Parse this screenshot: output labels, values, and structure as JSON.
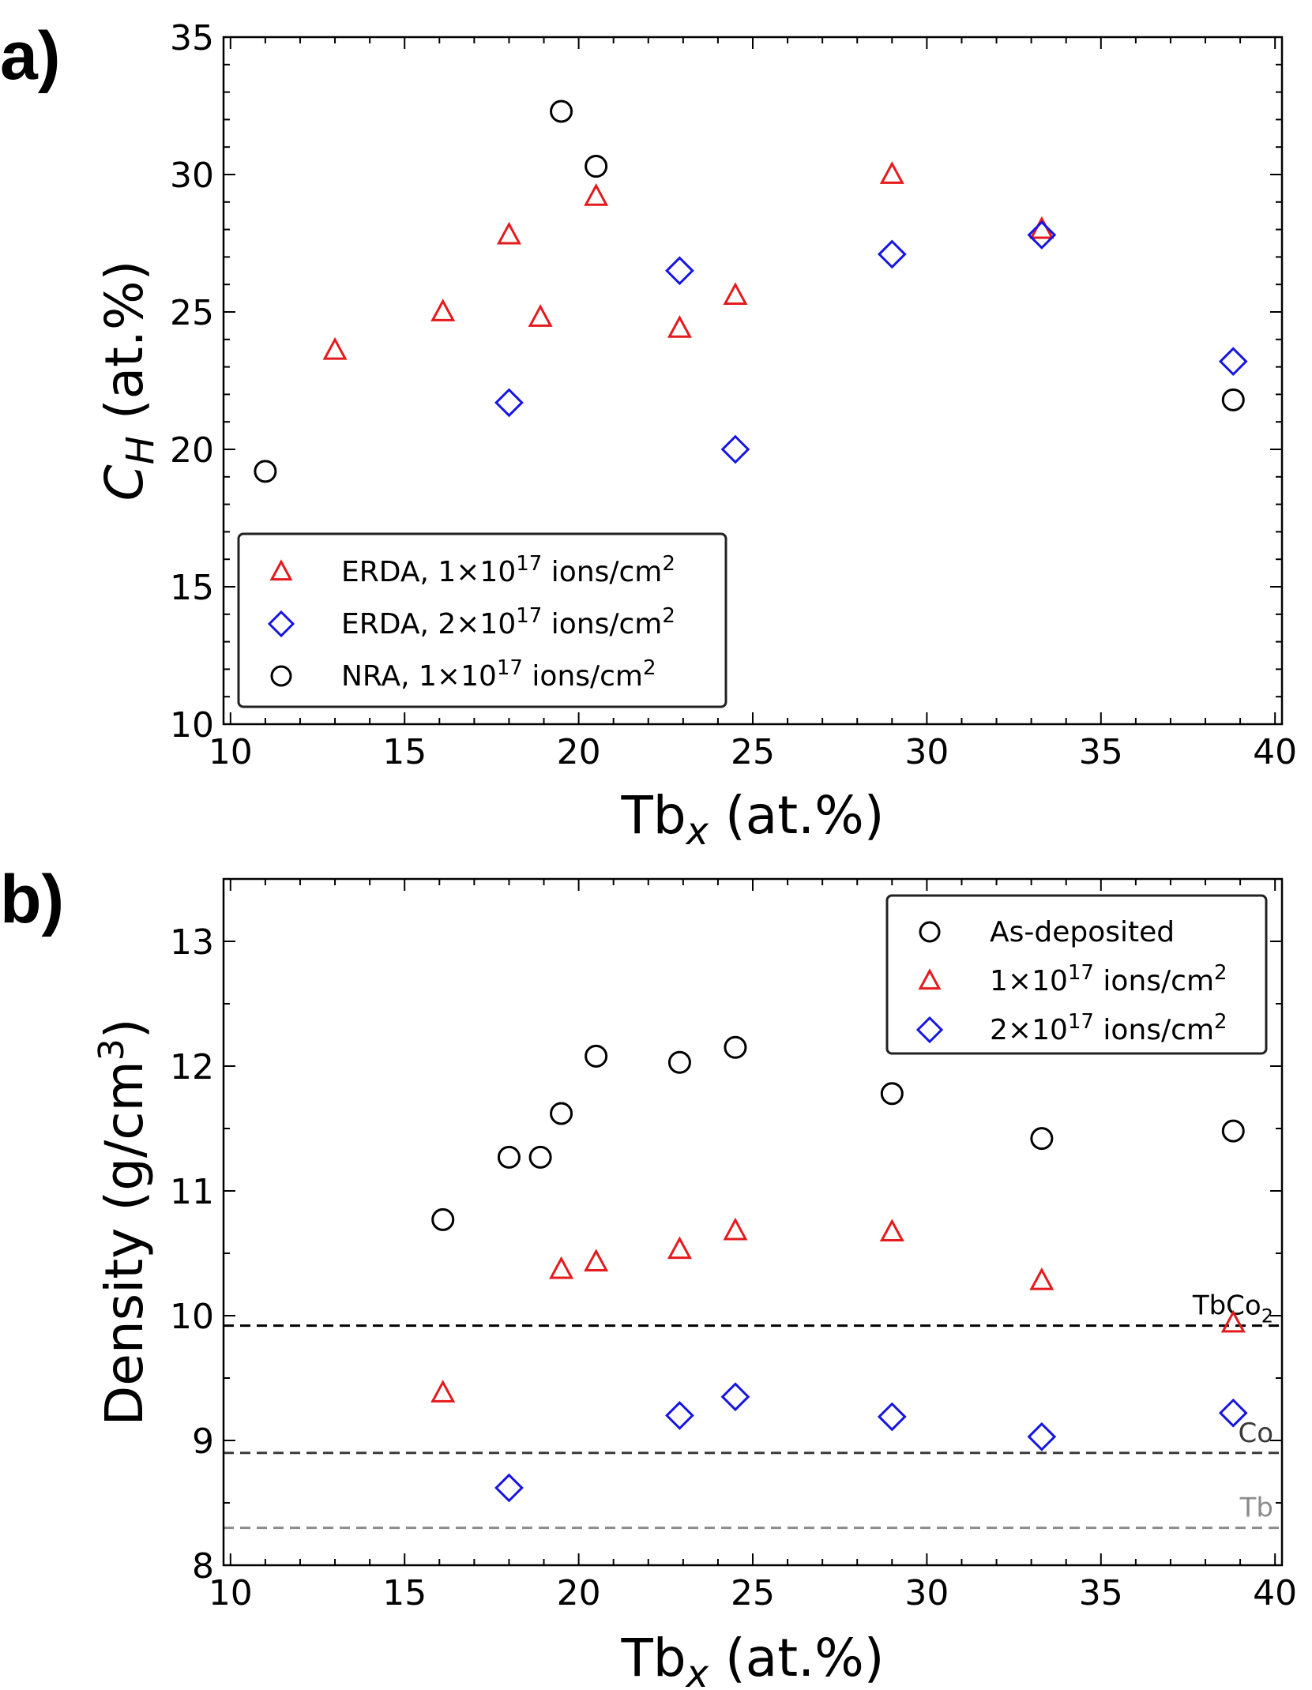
{
  "chart_data": [
    {
      "type": "scatter",
      "panel_label": "a)",
      "xlabel": "Tb",
      "xlabel_sub": "x",
      "xlabel_suffix": " (at.%)",
      "ylabel": "C",
      "ylabel_sub": "H",
      "ylabel_suffix": " (at.%)",
      "xlim": [
        9.8,
        40.2
      ],
      "ylim": [
        10,
        35
      ],
      "xticks": [
        "10",
        "15",
        "20",
        "25",
        "30",
        "35",
        "40"
      ],
      "yticks": [
        "10",
        "15",
        "20",
        "25",
        "30",
        "35"
      ],
      "grid": false,
      "legend_position": "lower-left",
      "series": [
        {
          "name_pre": "ERDA, 1×10",
          "name_sup": "17",
          "name_mid": " ions/cm",
          "name_sup2": "2",
          "marker": "triangle",
          "color": "#e41a1c",
          "points": [
            [
              13.0,
              23.6
            ],
            [
              16.1,
              25.0
            ],
            [
              18.0,
              27.8
            ],
            [
              18.9,
              24.8
            ],
            [
              20.5,
              29.2
            ],
            [
              22.9,
              24.4
            ],
            [
              24.5,
              25.6
            ],
            [
              29.0,
              30.0
            ],
            [
              33.3,
              28.0
            ]
          ]
        },
        {
          "name_pre": "ERDA, 2×10",
          "name_sup": "17",
          "name_mid": " ions/cm",
          "name_sup2": "2",
          "marker": "diamond",
          "color": "#1515e6",
          "points": [
            [
              18.0,
              21.7
            ],
            [
              22.9,
              26.5
            ],
            [
              24.5,
              20.0
            ],
            [
              29.0,
              27.1
            ],
            [
              33.3,
              27.8
            ],
            [
              38.8,
              23.2
            ]
          ]
        },
        {
          "name_pre": "NRA, 1×10",
          "name_sup": "17",
          "name_mid": " ions/cm",
          "name_sup2": "2",
          "marker": "circle",
          "color": "#000000",
          "points": [
            [
              11.0,
              19.2
            ],
            [
              19.5,
              32.3
            ],
            [
              20.5,
              30.3
            ],
            [
              38.8,
              21.8
            ]
          ]
        }
      ]
    },
    {
      "type": "scatter",
      "panel_label": "b)",
      "xlabel": "Tb",
      "xlabel_sub": "x",
      "xlabel_suffix": " (at.%)",
      "ylabel_pre": "Density (g/cm",
      "ylabel_sup": "3",
      "ylabel_post": ")",
      "xlim": [
        9.8,
        40.2
      ],
      "ylim": [
        8,
        13.5
      ],
      "xticks": [
        "10",
        "15",
        "20",
        "25",
        "30",
        "35",
        "40"
      ],
      "yticks": [
        "8",
        "9",
        "10",
        "11",
        "12",
        "13"
      ],
      "grid": false,
      "legend_position": "top-right",
      "series": [
        {
          "name_pre": "As-deposited",
          "marker": "circle",
          "color": "#000000",
          "points": [
            [
              16.1,
              10.77
            ],
            [
              18.0,
              11.27
            ],
            [
              18.9,
              11.27
            ],
            [
              19.5,
              11.62
            ],
            [
              20.5,
              12.08
            ],
            [
              22.9,
              12.03
            ],
            [
              24.5,
              12.15
            ],
            [
              29.0,
              11.78
            ],
            [
              33.3,
              11.42
            ],
            [
              38.8,
              11.48
            ]
          ]
        },
        {
          "name_pre": "1×10",
          "name_sup": "17",
          "name_mid": " ions/cm",
          "name_sup2": "2",
          "marker": "triangle",
          "color": "#e41a1c",
          "points": [
            [
              16.1,
              9.38
            ],
            [
              19.5,
              10.37
            ],
            [
              20.5,
              10.43
            ],
            [
              22.9,
              10.53
            ],
            [
              24.5,
              10.68
            ],
            [
              29.0,
              10.67
            ],
            [
              33.3,
              10.28
            ],
            [
              38.8,
              9.94
            ]
          ]
        },
        {
          "name_pre": "2×10",
          "name_sup": "17",
          "name_mid": " ions/cm",
          "name_sup2": "2",
          "marker": "diamond",
          "color": "#1515e6",
          "points": [
            [
              18.0,
              8.62
            ],
            [
              22.9,
              9.2
            ],
            [
              24.5,
              9.35
            ],
            [
              29.0,
              9.19
            ],
            [
              33.3,
              9.03
            ],
            [
              38.8,
              9.22
            ]
          ]
        }
      ],
      "reference_lines": [
        {
          "label": "TbCo",
          "label_sub": "2",
          "y": 9.92,
          "color": "#000000"
        },
        {
          "label": "Co",
          "y": 8.9,
          "color": "#3a3a3a"
        },
        {
          "label": "Tb",
          "y": 8.3,
          "color": "#8c8c8c"
        }
      ]
    }
  ]
}
